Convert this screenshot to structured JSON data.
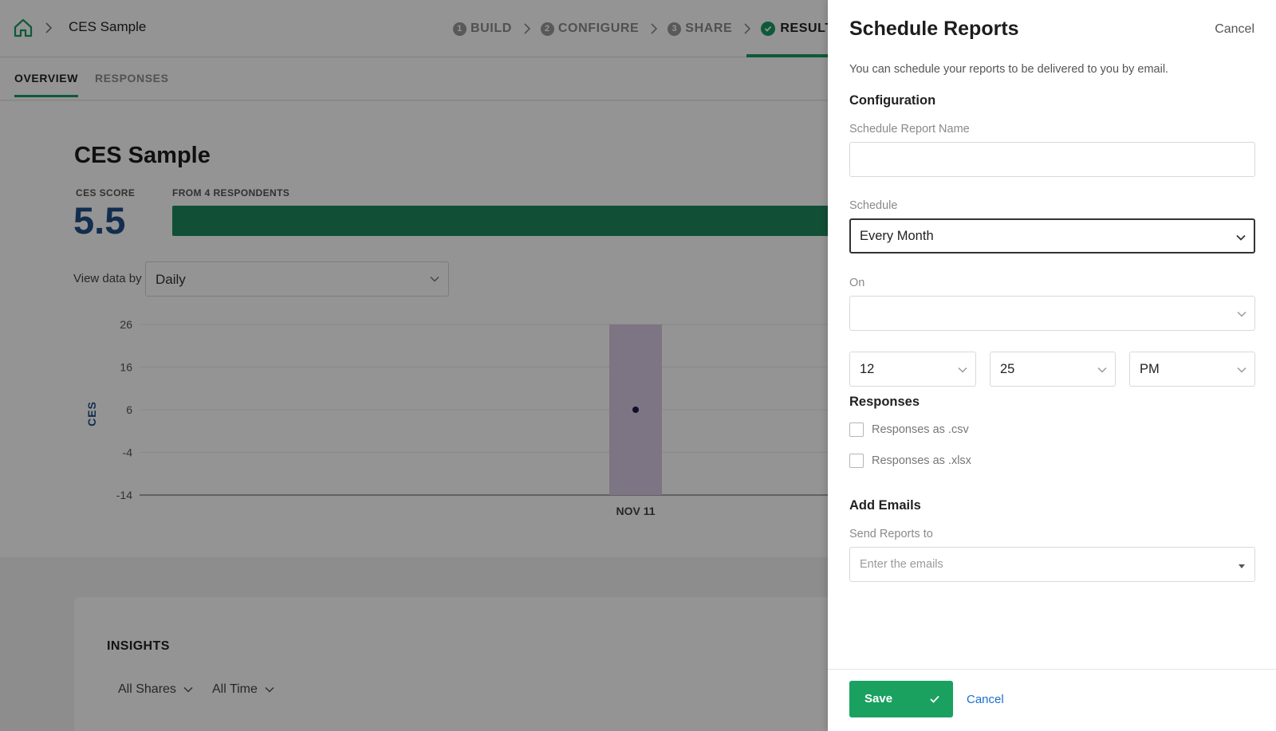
{
  "breadcrumb": {
    "title": "CES Sample"
  },
  "steps": [
    {
      "num": "1",
      "label": "BUILD"
    },
    {
      "num": "2",
      "label": "CONFIGURE"
    },
    {
      "num": "3",
      "label": "SHARE"
    },
    {
      "label": "RESULTS",
      "active": true
    }
  ],
  "subtabs": {
    "overview": "OVERVIEW",
    "responses": "RESPONSES"
  },
  "summary": {
    "title": "CES Sample",
    "score_label": "CES SCORE",
    "score_value": "5.5",
    "respondents_label": "FROM 4 RESPONDENTS"
  },
  "view_data": {
    "label": "View data by",
    "value": "Daily"
  },
  "chart_data": {
    "type": "bar",
    "categories": [
      "NOV 11"
    ],
    "ylabel": "CES",
    "yticks": [
      26,
      16,
      6,
      -4,
      -14
    ],
    "ylim": [
      -14,
      26
    ],
    "range_bar": {
      "low": -14,
      "high": 26
    },
    "point": 6
  },
  "insights": {
    "title": "INSIGHTS",
    "filter_shares": "All Shares",
    "filter_time": "All Time"
  },
  "drawer": {
    "title": "Schedule Reports",
    "cancel_top": "Cancel",
    "description": "You can schedule your reports to be delivered to you by email.",
    "configuration_heading": "Configuration",
    "report_name_label": "Schedule Report Name",
    "report_name_value": "",
    "schedule_label": "Schedule",
    "schedule_value": "Every Month",
    "on_label": "On",
    "on_value": "",
    "hour": "12",
    "minute": "25",
    "ampm": "PM",
    "responses_heading": "Responses",
    "csv_label": "Responses as .csv",
    "xlsx_label": "Responses as .xlsx",
    "emails_heading": "Add Emails",
    "send_to_label": "Send Reports to",
    "emails_placeholder": "Enter the emails",
    "save_label": "Save",
    "cancel_bottom": "Cancel"
  },
  "colors": {
    "accent": "#1aa160",
    "score": "#1f4f86",
    "link": "#1c6fd1",
    "bar": "#1e8a5d"
  }
}
